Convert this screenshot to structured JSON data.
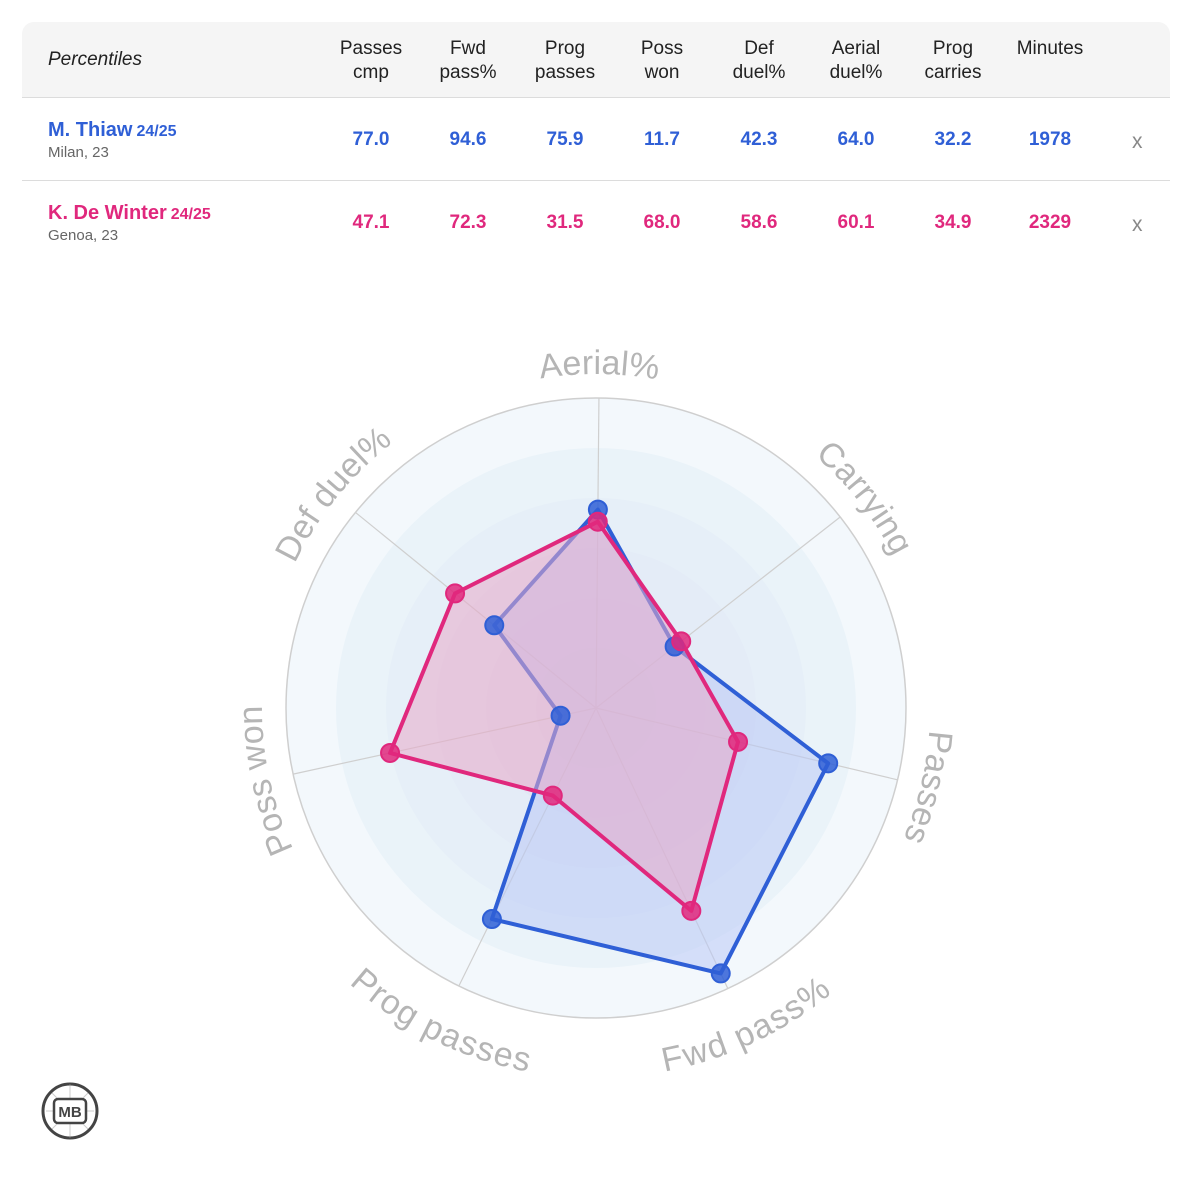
{
  "table": {
    "title": "Percentiles",
    "columns": [
      "Passes\ncmp",
      "Fwd\npass%",
      "Prog\npasses",
      "Poss\nwon",
      "Def\nduel%",
      "Aerial\nduel%",
      "Prog\ncarries",
      "Minutes"
    ],
    "remove_label": "x"
  },
  "players": [
    {
      "name": "M. Thiaw",
      "season": "24/25",
      "club": "Milan, 23",
      "color": "#2f5fd6",
      "values": [
        "77.0",
        "94.6",
        "75.9",
        "11.7",
        "42.3",
        "64.0",
        "32.2",
        "1978"
      ]
    },
    {
      "name": "K. De Winter",
      "season": "24/25",
      "club": "Genoa, 23",
      "color": "#e0287d",
      "values": [
        "47.1",
        "72.3",
        "31.5",
        "68.0",
        "58.6",
        "60.1",
        "34.9",
        "2329"
      ]
    }
  ],
  "chart_data": {
    "type": "radar",
    "axes": [
      "Aerial%",
      "Carrying",
      "Passes",
      "Fwd pass%",
      "Prog passes",
      "Poss won",
      "Def duel%"
    ],
    "range": [
      0,
      100
    ],
    "series": [
      {
        "name": "M. Thiaw",
        "color": "#2f5fd6",
        "fill": "#b9c9f5",
        "values": [
          64.0,
          32.2,
          77.0,
          94.6,
          75.9,
          11.7,
          42.3
        ]
      },
      {
        "name": "K. De Winter",
        "color": "#e0287d",
        "fill": "#e8a9c8",
        "values": [
          60.1,
          34.9,
          47.1,
          72.3,
          31.5,
          68.0,
          58.6
        ]
      }
    ]
  },
  "logo_text": "MB"
}
